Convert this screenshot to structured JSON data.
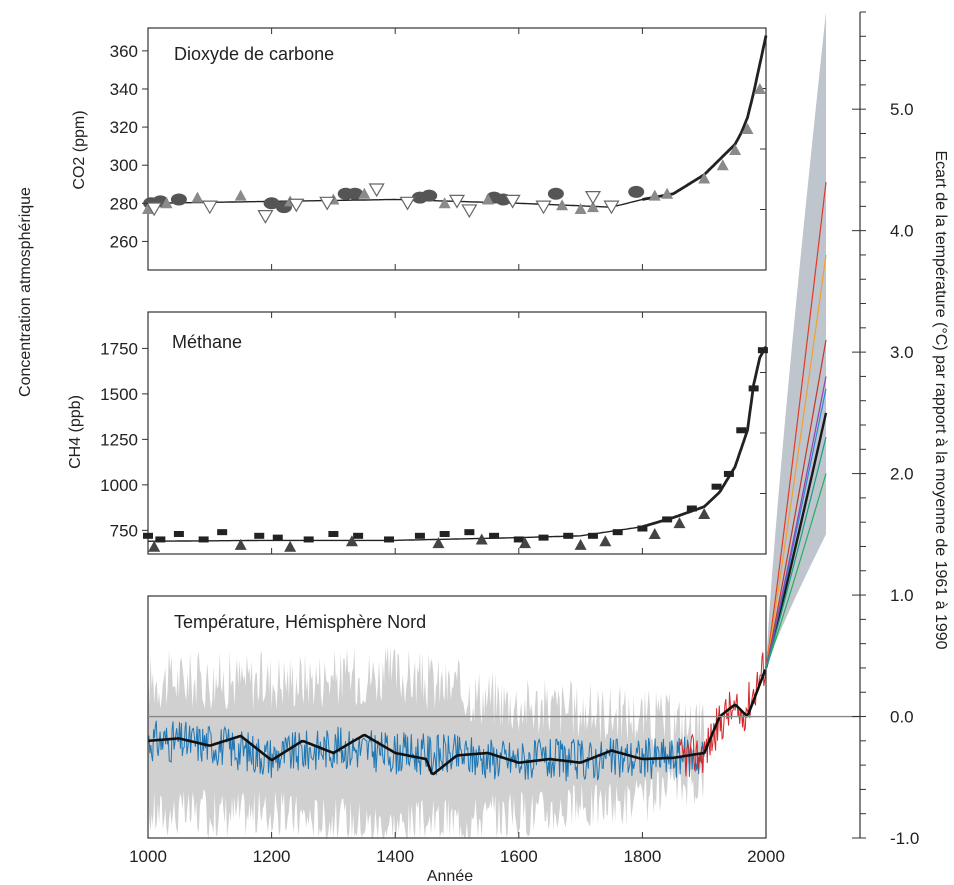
{
  "chart_data": {
    "type": "line",
    "x_label": "Année",
    "x_range": [
      1000,
      2000
    ],
    "x_ticks": [
      "1000",
      "1200",
      "1400",
      "1600",
      "1800",
      "2000"
    ],
    "left_axis_label": "Concentration atmosphérique",
    "right_axis_label": "Ecart de la température (°C) par rapport à la moyenne de 1961 à 1990",
    "right_axis": {
      "range": [
        -1.0,
        5.8
      ],
      "ticks": [
        "5.0",
        "4.0",
        "3.0",
        "2.0",
        "1.0",
        "0.0",
        "-1.0"
      ],
      "tick_values": [
        5.0,
        4.0,
        3.0,
        2.0,
        1.0,
        0.0,
        -1.0
      ]
    },
    "panels": [
      {
        "id": "co2",
        "title": "Dioxyde de carbone",
        "ylabel": "CO2 (ppm)",
        "ylim": [
          245,
          372
        ],
        "y_ticks": [
          "360",
          "340",
          "320",
          "300",
          "280",
          "260"
        ],
        "y_tick_values": [
          360,
          340,
          320,
          300,
          280,
          260
        ],
        "series": [
          {
            "style": "smoothed",
            "color": "#222222",
            "x": [
              1000,
              1200,
              1400,
              1600,
              1750,
              1800,
              1850,
              1900,
              1925,
              1950,
              1960,
              1970,
              1980,
              1990,
              2000
            ],
            "values": [
              280,
              281,
              282,
              280,
              278,
              282,
              285,
              295,
              303,
              311,
              317,
              325,
              338,
              353,
              368
            ]
          },
          {
            "style": "markers-circle",
            "color": "#555555",
            "x": [
              1005,
              1020,
              1050,
              1200,
              1220,
              1320,
              1335,
              1440,
              1455,
              1560,
              1575,
              1660,
              1790
            ],
            "values": [
              280,
              281,
              282,
              280,
              278,
              285,
              285,
              283,
              284,
              283,
              282,
              285,
              286
            ]
          },
          {
            "style": "markers-triangle-up",
            "color": "#8a8a8a",
            "x": [
              1000,
              1030,
              1080,
              1150,
              1230,
              1300,
              1350,
              1480,
              1550,
              1670,
              1700,
              1720,
              1820,
              1840,
              1900,
              1930,
              1950,
              1970,
              1990
            ],
            "values": [
              277,
              280,
              283,
              284,
              281,
              282,
              285,
              280,
              282,
              279,
              277,
              278,
              284,
              285,
              293,
              300,
              308,
              319,
              340
            ]
          },
          {
            "style": "markers-triangle-down",
            "color": "#666666",
            "x": [
              1010,
              1100,
              1190,
              1240,
              1290,
              1370,
              1420,
              1500,
              1520,
              1590,
              1640,
              1720,
              1750
            ],
            "values": [
              277,
              278,
              273,
              279,
              280,
              287,
              280,
              281,
              276,
              281,
              278,
              283,
              278
            ]
          }
        ]
      },
      {
        "id": "ch4",
        "title": "Méthane",
        "ylabel": "CH4 (ppb)",
        "ylim": [
          620,
          1950
        ],
        "y_ticks": [
          "1750",
          "1500",
          "1250",
          "1000",
          "750"
        ],
        "y_tick_values": [
          1750,
          1500,
          1250,
          1000,
          750
        ],
        "series": [
          {
            "style": "smoothed",
            "color": "#222222",
            "x": [
              1000,
              1200,
              1400,
              1600,
              1700,
              1800,
              1850,
              1900,
              1925,
              1950,
              1970,
              1980,
              1990,
              2000
            ],
            "values": [
              690,
              695,
              695,
              710,
              720,
              770,
              820,
              880,
              960,
              1100,
              1300,
              1550,
              1700,
              1760
            ]
          },
          {
            "style": "markers-square",
            "color": "#222222",
            "x": [
              1000,
              1020,
              1050,
              1090,
              1120,
              1180,
              1210,
              1260,
              1300,
              1340,
              1390,
              1440,
              1480,
              1520,
              1560,
              1600,
              1640,
              1680,
              1720,
              1760,
              1800,
              1840,
              1880,
              1920,
              1940,
              1960,
              1980,
              1995
            ],
            "values": [
              720,
              700,
              730,
              700,
              740,
              720,
              710,
              700,
              730,
              720,
              700,
              720,
              730,
              740,
              720,
              700,
              710,
              720,
              720,
              740,
              760,
              810,
              870,
              990,
              1060,
              1300,
              1530,
              1740
            ]
          },
          {
            "style": "markers-triangle-up",
            "color": "#444444",
            "x": [
              1010,
              1150,
              1230,
              1330,
              1470,
              1540,
              1610,
              1700,
              1740,
              1820,
              1860,
              1900
            ],
            "values": [
              660,
              670,
              660,
              690,
              680,
              700,
              680,
              670,
              690,
              730,
              790,
              840
            ]
          }
        ]
      },
      {
        "id": "temperature",
        "title": "Température, Hémisphère Nord",
        "ylabel": "",
        "ylim": [
          -1.0,
          5.8
        ],
        "series": [
          {
            "style": "smoothed",
            "color": "#111111",
            "x": [
              1000,
              1050,
              1100,
              1150,
              1200,
              1250,
              1300,
              1350,
              1400,
              1450,
              1460,
              1500,
              1550,
              1600,
              1650,
              1700,
              1750,
              1800,
              1850,
              1900,
              1925,
              1950,
              1970,
              2000
            ],
            "values": [
              -0.2,
              -0.18,
              -0.24,
              -0.16,
              -0.36,
              -0.2,
              -0.3,
              -0.15,
              -0.3,
              -0.35,
              -0.48,
              -0.32,
              -0.3,
              -0.38,
              -0.35,
              -0.38,
              -0.28,
              -0.35,
              -0.34,
              -0.3,
              0.0,
              0.1,
              0.0,
              0.4
            ]
          },
          {
            "style": "noisy",
            "color": "#1f77b4",
            "x": [
              1000,
              1100,
              1200,
              1300,
              1400,
              1500,
              1600,
              1700,
              1800,
              1900
            ],
            "values": [
              -0.2,
              -0.22,
              -0.33,
              -0.25,
              -0.3,
              -0.32,
              -0.36,
              -0.36,
              -0.34,
              -0.33
            ]
          },
          {
            "style": "noisy",
            "color": "#d62728",
            "x": [
              1860,
              1900,
              1920,
              1940,
              1960,
              1980,
              2000
            ],
            "values": [
              -0.35,
              -0.3,
              -0.1,
              0.05,
              0.0,
              0.2,
              0.45
            ]
          },
          {
            "style": "band",
            "color": "#c8c8c8",
            "x": [
              1000,
              1200,
              1400,
              1600,
              1800,
              1900
            ],
            "lower": [
              -0.8,
              -0.8,
              -0.9,
              -0.8,
              -0.7,
              -0.5
            ],
            "upper": [
              0.3,
              0.3,
              0.35,
              0.1,
              0.0,
              -0.1
            ]
          }
        ]
      }
    ],
    "projections": {
      "x_end": 2100,
      "band_lower_2100": 1.5,
      "band_upper_2100": 5.8,
      "series": [
        {
          "color": "#1a1a1a",
          "value_2100": 2.5
        },
        {
          "color": "#e23a2a",
          "value_2100": 4.4
        },
        {
          "color": "#f0a030",
          "value_2100": 3.8
        },
        {
          "color": "#c0392b",
          "value_2100": 3.1
        },
        {
          "color": "#2e86de",
          "value_2100": 2.7
        },
        {
          "color": "#27ae60",
          "value_2100": 2.0
        },
        {
          "color": "#8e44ad",
          "value_2100": 2.8
        },
        {
          "color": "#16a085",
          "value_2100": 2.3
        }
      ]
    }
  }
}
